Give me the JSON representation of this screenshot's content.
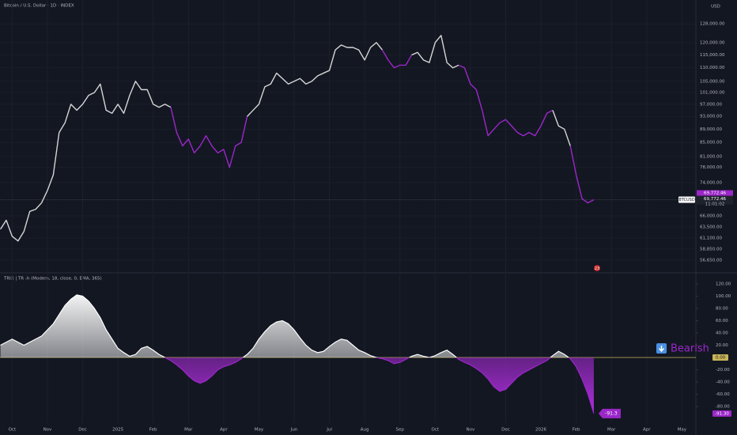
{
  "chart_data": [
    {
      "type": "line",
      "title": "Bitcoin / U.S. Dollar · 1D · INDEX",
      "currency": "USD",
      "symbol": "BTCUSD",
      "countdown": "11:01:02",
      "badge": "23",
      "log_scale": true,
      "color": "#d6d6d6",
      "alt_color": "#9b27c9",
      "ylim": [
        54200,
        139000
      ],
      "yticks": [
        {
          "value": 128000,
          "label": "128,000.00"
        },
        {
          "value": 120000,
          "label": "120,000.00"
        },
        {
          "value": 115000,
          "label": "115,000.00"
        },
        {
          "value": 110000,
          "label": "110,000.00"
        },
        {
          "value": 105000,
          "label": "105,000.00"
        },
        {
          "value": 101000,
          "label": "101,000.00"
        },
        {
          "value": 97000,
          "label": "97,000.00"
        },
        {
          "value": 93000,
          "label": "93,000.00"
        },
        {
          "value": 89000,
          "label": "89,000.00"
        },
        {
          "value": 85000,
          "label": "85,000.00"
        },
        {
          "value": 81000,
          "label": "81,000.00"
        },
        {
          "value": 78000,
          "label": "78,000.00"
        },
        {
          "value": 74000,
          "label": "74,000.00"
        },
        {
          "value": 66000,
          "label": "66,000.00"
        },
        {
          "value": 63500,
          "label": "63,500.00"
        },
        {
          "value": 61100,
          "label": "61,100.00"
        },
        {
          "value": 58850,
          "label": "58,850.00"
        },
        {
          "value": 56650,
          "label": "56,650.00"
        }
      ],
      "categories": [
        null,
        null,
        "Oct",
        null,
        null,
        null,
        null,
        null,
        "Nov",
        null,
        null,
        null,
        null,
        null,
        "Dec",
        null,
        null,
        null,
        null,
        null,
        "2025",
        null,
        null,
        null,
        null,
        null,
        "Feb",
        null,
        null,
        null,
        null,
        null,
        "Mar",
        null,
        null,
        null,
        null,
        null,
        "Apr",
        null,
        null,
        null,
        null,
        null,
        "May",
        null,
        null,
        null,
        null,
        null,
        "Jun",
        null,
        null,
        null,
        null,
        null,
        "Jul",
        null,
        null,
        null,
        null,
        null,
        "Aug",
        null,
        null,
        null,
        null,
        null,
        "Sep",
        null,
        null,
        null,
        null,
        null,
        "Oct",
        null,
        null,
        null,
        null,
        null,
        "Nov",
        null,
        null,
        null,
        null,
        null,
        "Dec",
        null,
        null,
        null,
        null,
        null,
        "2026",
        null,
        null,
        null,
        null,
        null,
        "Feb",
        null,
        null,
        null,
        null,
        null,
        "Mar",
        null,
        null,
        null,
        null,
        null,
        "Apr",
        null,
        null,
        null,
        null,
        null,
        "May"
      ],
      "values": [
        63000,
        65000,
        61500,
        60500,
        62500,
        67000,
        67500,
        69000,
        72000,
        76000,
        88000,
        91000,
        97000,
        95000,
        97000,
        100000,
        101000,
        104000,
        95000,
        94000,
        97000,
        94000,
        100000,
        105000,
        102000,
        102000,
        97000,
        96000,
        97000,
        96000,
        88000,
        84000,
        86000,
        82000,
        84000,
        87000,
        84000,
        82000,
        83000,
        78000,
        84000,
        85000,
        93000,
        95000,
        97000,
        103000,
        104000,
        108000,
        106000,
        104000,
        105000,
        106000,
        104000,
        105000,
        107000,
        108000,
        109000,
        117000,
        119000,
        118000,
        118000,
        117000,
        113000,
        118000,
        120000,
        117000,
        113000,
        110000,
        111000,
        111000,
        115000,
        116000,
        113000,
        112000,
        120000,
        123000,
        112000,
        110000,
        111000,
        110000,
        104000,
        102000,
        95000,
        87000,
        89000,
        91000,
        92000,
        90000,
        88000,
        87000,
        88000,
        87000,
        90000,
        94000,
        95000,
        90000,
        89000,
        84000,
        76000,
        70000,
        69000,
        69772.46,
        null,
        null,
        null,
        null,
        null,
        null,
        null,
        null,
        null,
        null,
        null,
        null,
        null,
        null,
        null
      ],
      "value_labels": {
        "101": "69,772.46"
      }
    },
    {
      "type": "area",
      "title": "TRIX | TR -h (Modern, 18, close, 0, EMA, 365)",
      "status": "Bearish",
      "color": "#ffffff",
      "alt_color": "#9b27c9",
      "zero_color": "#c9b458",
      "ylim": [
        -107,
        138
      ],
      "yticks": [
        {
          "value": 120,
          "label": "120.00"
        },
        {
          "value": 100,
          "label": "100.00"
        },
        {
          "value": 80,
          "label": "80.00"
        },
        {
          "value": 60,
          "label": "60.00"
        },
        {
          "value": 40,
          "label": "40.00"
        },
        {
          "value": 20,
          "label": "20.00"
        },
        {
          "value": 0,
          "label": "0.00"
        },
        {
          "value": -20,
          "label": "-20.00"
        },
        {
          "value": -40,
          "label": "-40.00"
        },
        {
          "value": -60,
          "label": "-60.00"
        },
        {
          "value": -80,
          "label": "-80.00"
        }
      ],
      "categories": [
        null,
        null,
        "Oct",
        null,
        null,
        null,
        null,
        null,
        "Nov",
        null,
        null,
        null,
        null,
        null,
        "Dec",
        null,
        null,
        null,
        null,
        null,
        "2025",
        null,
        null,
        null,
        null,
        null,
        "Feb",
        null,
        null,
        null,
        null,
        null,
        "Mar",
        null,
        null,
        null,
        null,
        null,
        "Apr",
        null,
        null,
        null,
        null,
        null,
        "May",
        null,
        null,
        null,
        null,
        null,
        "Jun",
        null,
        null,
        null,
        null,
        null,
        "Jul",
        null,
        null,
        null,
        null,
        null,
        "Aug",
        null,
        null,
        null,
        null,
        null,
        "Sep",
        null,
        null,
        null,
        null,
        null,
        "Oct",
        null,
        null,
        null,
        null,
        null,
        "Nov",
        null,
        null,
        null,
        null,
        null,
        "Dec",
        null,
        null,
        null,
        null,
        null,
        "2026",
        null,
        null,
        null,
        null,
        null,
        "Feb",
        null,
        null,
        null,
        null,
        null,
        "Mar",
        null,
        null,
        null,
        null,
        null,
        "Apr",
        null,
        null,
        null,
        null,
        null,
        "May"
      ],
      "values": [
        20,
        25,
        30,
        25,
        20,
        25,
        30,
        35,
        45,
        55,
        70,
        85,
        95,
        102,
        100,
        92,
        80,
        65,
        45,
        30,
        15,
        8,
        2,
        5,
        15,
        18,
        12,
        5,
        0,
        -5,
        -12,
        -20,
        -30,
        -38,
        -42,
        -38,
        -30,
        -20,
        -15,
        -12,
        -8,
        -2,
        5,
        15,
        30,
        42,
        52,
        58,
        60,
        55,
        45,
        32,
        20,
        12,
        8,
        10,
        18,
        25,
        30,
        28,
        20,
        12,
        8,
        3,
        0,
        -2,
        -5,
        -10,
        -8,
        -3,
        2,
        5,
        2,
        0,
        3,
        8,
        12,
        5,
        -3,
        -8,
        -12,
        -18,
        -25,
        -35,
        -48,
        -55,
        -52,
        -42,
        -32,
        -25,
        -20,
        -15,
        -10,
        -5,
        3,
        10,
        5,
        -2,
        -15,
        -35,
        -60,
        -91.3,
        null,
        null,
        null,
        null,
        null,
        null,
        null,
        null,
        null,
        null,
        null,
        null,
        null,
        null,
        null
      ],
      "value_labels": {
        "101": "-91.30"
      }
    }
  ]
}
